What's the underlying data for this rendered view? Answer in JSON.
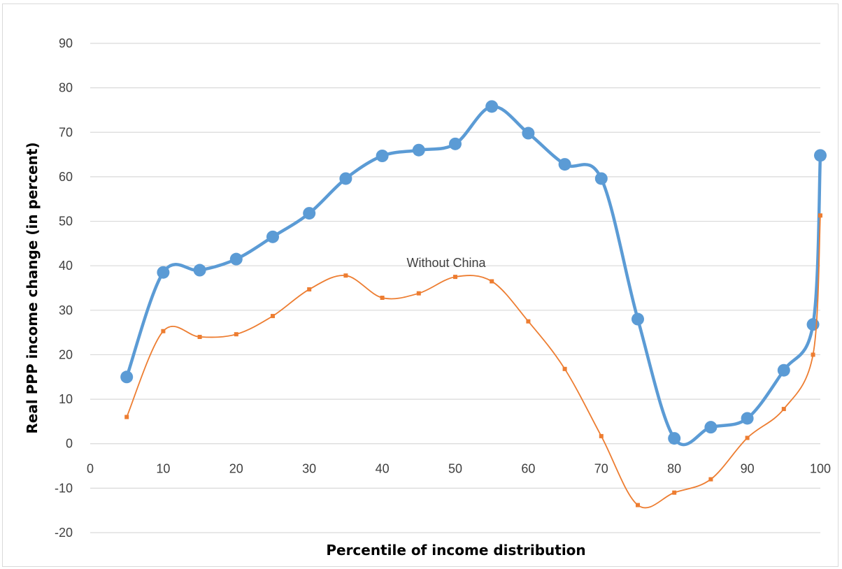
{
  "chart_data": {
    "type": "line",
    "title": "",
    "xlabel": "Percentile of income distribution",
    "ylabel": "Real PPP income change (in percent)",
    "xlim": [
      0,
      100
    ],
    "ylim": [
      -20,
      90
    ],
    "x_ticks": [
      "0",
      "10",
      "20",
      "30",
      "40",
      "50",
      "60",
      "70",
      "80",
      "90",
      "100"
    ],
    "y_ticks": [
      "90",
      "80",
      "70",
      "60",
      "50",
      "40",
      "30",
      "20",
      "10",
      "0",
      "-10",
      "-20"
    ],
    "grid": "horizontal",
    "annotation": "Without China",
    "series": [
      {
        "color": "#5b9bd5",
        "x": [
          5,
          10,
          15,
          20,
          25,
          30,
          35,
          40,
          45,
          50,
          55,
          60,
          65,
          70,
          75,
          80,
          85,
          90,
          95,
          99,
          100
        ],
        "y": [
          15,
          38.5,
          39,
          41.5,
          46.5,
          51.8,
          59.6,
          64.7,
          66,
          67.4,
          75.8,
          69.8,
          62.8,
          59.6,
          28,
          1.2,
          3.7,
          5.7,
          16.5,
          26.8,
          64.8
        ]
      },
      {
        "name": "Without China",
        "color": "#ed7d31",
        "x": [
          5,
          10,
          15,
          20,
          25,
          30,
          35,
          40,
          45,
          50,
          55,
          60,
          65,
          70,
          75,
          80,
          85,
          90,
          95,
          99,
          100
        ],
        "y": [
          6,
          25.3,
          24,
          24.6,
          28.7,
          34.7,
          37.8,
          32.8,
          33.8,
          37.5,
          36.5,
          27.5,
          16.8,
          1.7,
          -13.8,
          -11,
          -8,
          1.3,
          7.8,
          20,
          51.3
        ]
      }
    ]
  }
}
